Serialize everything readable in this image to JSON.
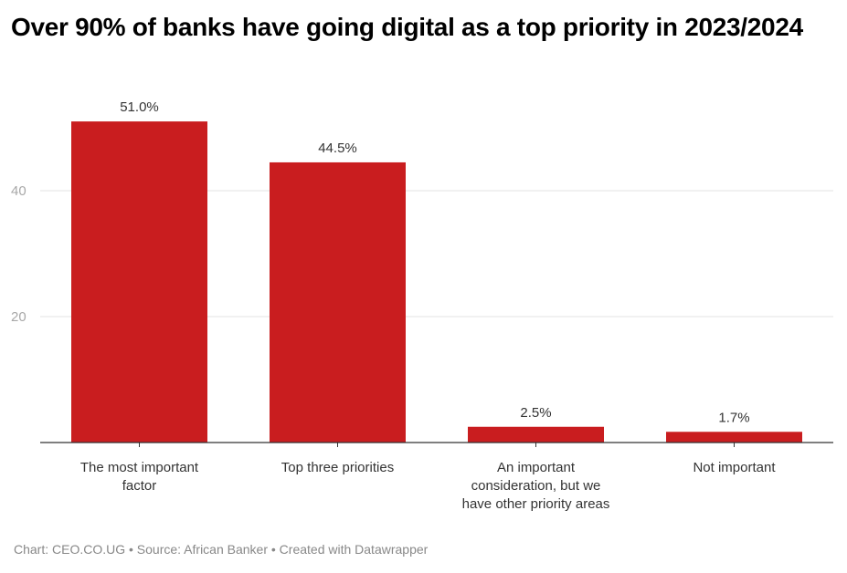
{
  "chart_data": {
    "type": "bar",
    "title": "Over 90% of banks have going digital as a top priority in 2023/2024",
    "categories": [
      [
        "The most important",
        "factor"
      ],
      [
        "Top three priorities"
      ],
      [
        "An important",
        "consideration, but we",
        "have other priority areas"
      ],
      [
        "Not important"
      ]
    ],
    "values": [
      51.0,
      44.5,
      2.5,
      1.7
    ],
    "value_labels": [
      "51.0%",
      "44.5%",
      "2.5%",
      "1.7%"
    ],
    "yticks": [
      20,
      40
    ],
    "ylim": [
      0,
      55
    ],
    "xlabel": "",
    "ylabel": "",
    "grid": true,
    "bar_color": "#c91d1f"
  },
  "footer": "Chart: CEO.CO.UG • Source: African Banker • Created with Datawrapper"
}
